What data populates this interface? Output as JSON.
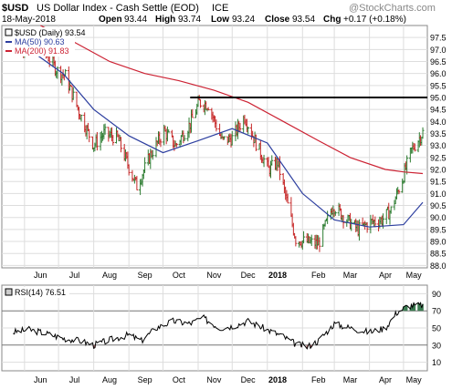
{
  "header": {
    "symbol": "$USD",
    "name": "US Dollar Index - Cash Settle (EOD)",
    "exchange": "ICE",
    "date": "18-May-2018",
    "open_label": "Open",
    "open": "93.44",
    "high_label": "High",
    "high": "93.74",
    "low_label": "Low",
    "low": "93.24",
    "close_label": "Close",
    "close": "93.54",
    "chg_label": "Chg",
    "chg": "+0.17 (+0.18%)",
    "watermark": "@StockCharts.com"
  },
  "legend": {
    "price": "$USD (Daily) 93.54",
    "ma50": "MA(50) 90.63",
    "ma200": "MA(200) 91.83"
  },
  "colors": {
    "price": "#000000",
    "up": "#2e7d32",
    "down": "#c62828",
    "ma50": "#2c3e9f",
    "ma200": "#cc2233",
    "rsi_fill_over": "#3c7c52",
    "rsi_fill_under": "#b07070",
    "grid": "#dddddd",
    "axis": "#999999"
  },
  "rsi_label": "RSI(14) 76.51",
  "chart_data": [
    {
      "type": "line",
      "title": "$USD US Dollar Index - Cash Settle (EOD) ICE",
      "x_labels": [
        "Jun",
        "Jul",
        "Aug",
        "Sep",
        "Oct",
        "Nov",
        "Dec",
        "2018",
        "Feb",
        "Mar",
        "Apr",
        "May"
      ],
      "y_ticks": [
        88.0,
        88.5,
        89.0,
        89.5,
        90.0,
        90.5,
        91.0,
        91.5,
        92.0,
        92.5,
        93.0,
        93.5,
        94.0,
        94.5,
        95.0,
        95.5,
        96.0,
        96.5,
        97.0,
        97.5
      ],
      "ylim": [
        87.9,
        98.0
      ],
      "grid": true,
      "legend_position": "top-left",
      "horizontal_line": 95.0,
      "series": [
        {
          "name": "$USD (Daily) 93.54",
          "kind": "price",
          "x": [
            "2017-05-22",
            "2017-06-05",
            "2017-06-19",
            "2017-06-30",
            "2017-07-07",
            "2017-07-20",
            "2017-08-01",
            "2017-08-10",
            "2017-08-22",
            "2017-09-01",
            "2017-09-08",
            "2017-09-20",
            "2017-10-02",
            "2017-10-12",
            "2017-10-25",
            "2017-11-02",
            "2017-11-10",
            "2017-11-22",
            "2017-12-01",
            "2017-12-12",
            "2017-12-22",
            "2018-01-02",
            "2018-01-10",
            "2018-01-19",
            "2018-01-26",
            "2018-02-02",
            "2018-02-15",
            "2018-02-28",
            "2018-03-12",
            "2018-03-22",
            "2018-04-02",
            "2018-04-12",
            "2018-04-20",
            "2018-04-30",
            "2018-05-08",
            "2018-05-18"
          ],
          "y": [
            97.2,
            97.1,
            96.9,
            96.1,
            95.9,
            94.3,
            93.0,
            93.5,
            93.3,
            92.1,
            91.3,
            92.6,
            93.6,
            93.0,
            93.9,
            94.8,
            94.7,
            93.2,
            93.3,
            94.2,
            93.1,
            92.0,
            92.3,
            90.5,
            89.1,
            89.0,
            88.9,
            90.5,
            89.9,
            89.5,
            89.8,
            89.9,
            90.3,
            91.6,
            92.8,
            93.54
          ]
        },
        {
          "name": "MA(50) 90.63",
          "kind": "ma",
          "x": [
            "2017-06-05",
            "2017-07-05",
            "2017-08-01",
            "2017-09-01",
            "2017-10-01",
            "2017-11-01",
            "2017-12-01",
            "2018-01-01",
            "2018-02-01",
            "2018-03-01",
            "2018-04-01",
            "2018-05-01",
            "2018-05-18"
          ],
          "y": [
            97.0,
            96.0,
            94.5,
            93.4,
            92.7,
            93.2,
            93.7,
            93.1,
            91.0,
            89.9,
            89.6,
            89.7,
            90.63
          ]
        },
        {
          "name": "MA(200) 91.83",
          "kind": "ma",
          "x": [
            "2017-06-15",
            "2017-07-15",
            "2017-08-15",
            "2017-09-15",
            "2017-10-15",
            "2017-11-15",
            "2017-12-15",
            "2018-01-15",
            "2018-02-15",
            "2018-03-15",
            "2018-04-15",
            "2018-05-01",
            "2018-05-18"
          ],
          "y": [
            98.0,
            97.3,
            96.5,
            96.0,
            95.7,
            95.3,
            94.8,
            94.0,
            93.2,
            92.5,
            92.0,
            91.9,
            91.83
          ]
        }
      ]
    },
    {
      "type": "line",
      "title": "RSI(14) 76.51",
      "x_labels": [
        "Jun",
        "Jul",
        "Aug",
        "Sep",
        "Oct",
        "Nov",
        "Dec",
        "2018",
        "Feb",
        "Mar",
        "Apr",
        "May"
      ],
      "y_ticks": [
        10,
        30,
        50,
        70,
        90
      ],
      "ylim": [
        0,
        100
      ],
      "reference_lines": [
        30,
        70
      ],
      "series": [
        {
          "name": "RSI(14) 76.51",
          "x": [
            "2017-05-22",
            "2017-06-05",
            "2017-06-19",
            "2017-07-05",
            "2017-07-20",
            "2017-08-01",
            "2017-08-15",
            "2017-09-01",
            "2017-09-12",
            "2017-09-25",
            "2017-10-10",
            "2017-10-25",
            "2017-11-05",
            "2017-11-20",
            "2017-12-01",
            "2017-12-15",
            "2018-01-01",
            "2018-01-15",
            "2018-01-25",
            "2018-02-05",
            "2018-02-15",
            "2018-03-01",
            "2018-03-15",
            "2018-04-01",
            "2018-04-15",
            "2018-04-25",
            "2018-05-05",
            "2018-05-18"
          ],
          "y": [
            45,
            48,
            44,
            38,
            35,
            30,
            36,
            42,
            35,
            50,
            58,
            55,
            62,
            50,
            52,
            58,
            48,
            40,
            32,
            28,
            35,
            55,
            50,
            45,
            50,
            68,
            76,
            76.51
          ]
        }
      ]
    }
  ]
}
